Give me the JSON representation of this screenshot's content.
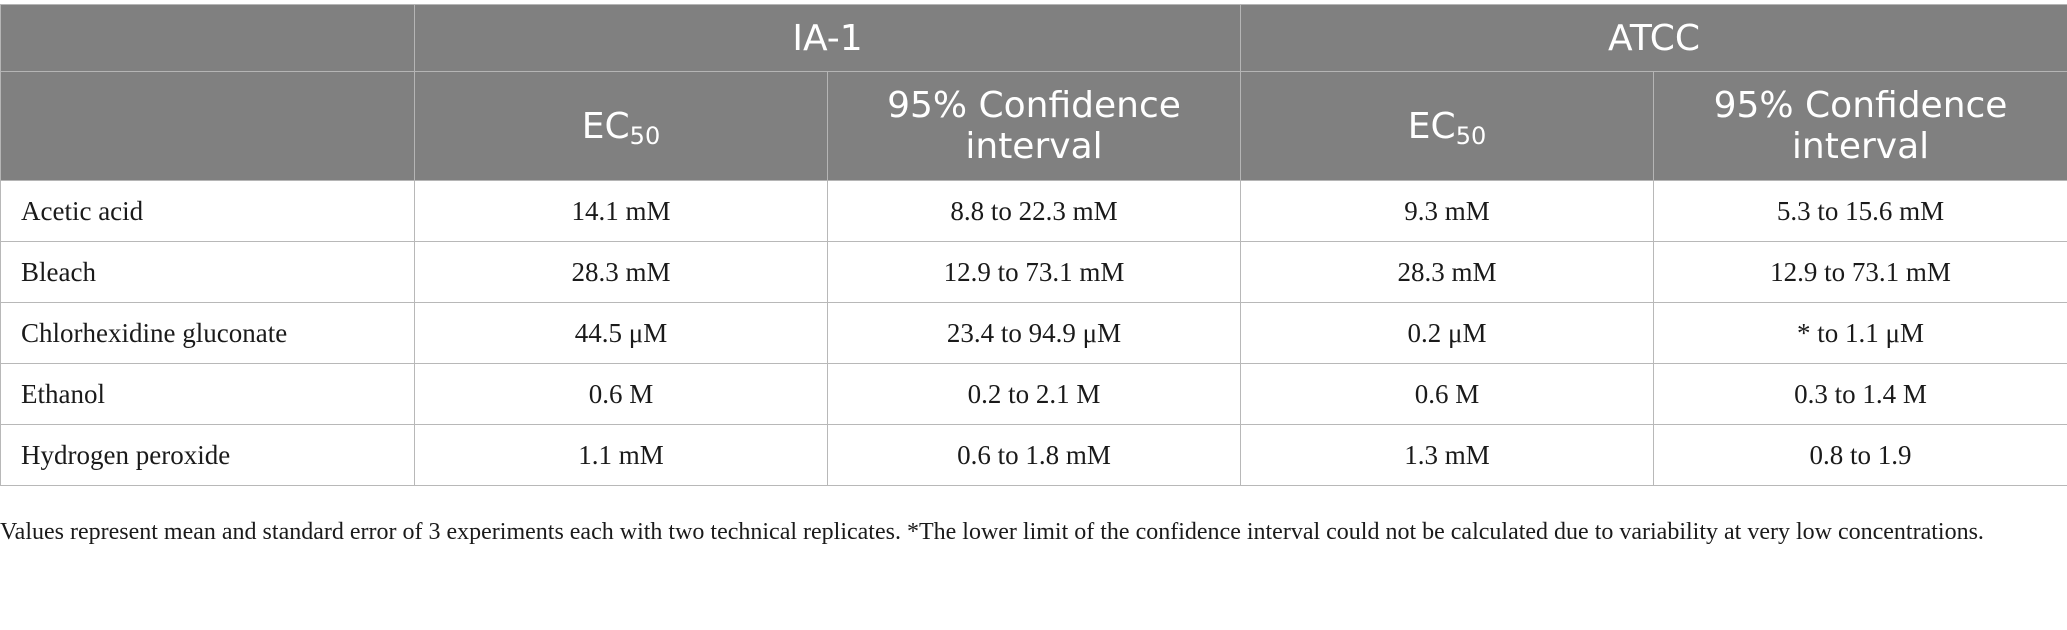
{
  "table": {
    "groups": [
      "IA-1",
      "ATCC"
    ],
    "subheaders": {
      "ec_main": "EC",
      "ec_sub": "50",
      "ci": "95% Confidence interval"
    },
    "rows": [
      {
        "label": "Acetic acid",
        "ia1_ec50": "14.1 mM",
        "ia1_ci": "8.8 to 22.3 mM",
        "atcc_ec50": "9.3 mM",
        "atcc_ci": "5.3 to 15.6 mM"
      },
      {
        "label": "Bleach",
        "ia1_ec50": "28.3 mM",
        "ia1_ci": "12.9 to 73.1 mM",
        "atcc_ec50": "28.3 mM",
        "atcc_ci": "12.9 to 73.1 mM"
      },
      {
        "label": "Chlorhexidine gluconate",
        "ia1_ec50": "44.5 μM",
        "ia1_ci": "23.4 to 94.9 μM",
        "atcc_ec50": "0.2 μM",
        "atcc_ci": "* to 1.1 μM"
      },
      {
        "label": "Ethanol",
        "ia1_ec50": "0.6 M",
        "ia1_ci": "0.2 to 2.1 M",
        "atcc_ec50": "0.6 M",
        "atcc_ci": "0.3 to 1.4 M"
      },
      {
        "label": "Hydrogen peroxide",
        "ia1_ec50": "1.1 mM",
        "ia1_ci": "0.6 to 1.8 mM",
        "atcc_ec50": "1.3 mM",
        "atcc_ci": "0.8 to 1.9"
      }
    ]
  },
  "footnote": "Values represent mean and standard error of 3 experiments each with two technical replicates. *The lower limit of the confidence interval could not be calculated due to variability at very low concentrations."
}
